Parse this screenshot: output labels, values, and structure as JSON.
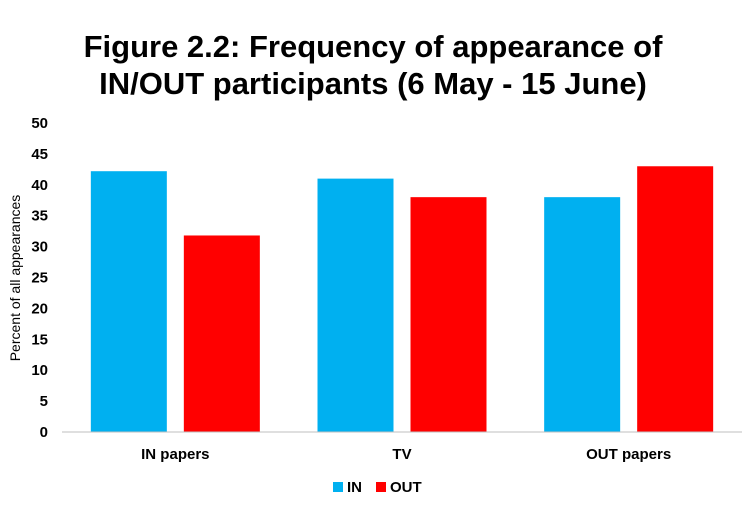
{
  "chart_data": {
    "type": "bar",
    "title_lines": [
      "Figure 2.2: Frequency of appearance of",
      "IN/OUT participants (6 May - 15 June)"
    ],
    "xlabel": "",
    "ylabel": "Percent of all appearances",
    "categories": [
      "IN papers",
      "TV",
      "OUT papers"
    ],
    "series": [
      {
        "name": "IN",
        "color": "#00B0F0",
        "values": [
          42.2,
          41.0,
          38.0
        ]
      },
      {
        "name": "OUT",
        "color": "#FF0000",
        "values": [
          31.8,
          38.0,
          43.0
        ]
      }
    ],
    "ylim": [
      0,
      50
    ],
    "yticks": [
      "0",
      "5",
      "10",
      "15",
      "20",
      "25",
      "30",
      "35",
      "40",
      "45",
      "50"
    ],
    "grid": false,
    "legend_position": "bottom"
  }
}
